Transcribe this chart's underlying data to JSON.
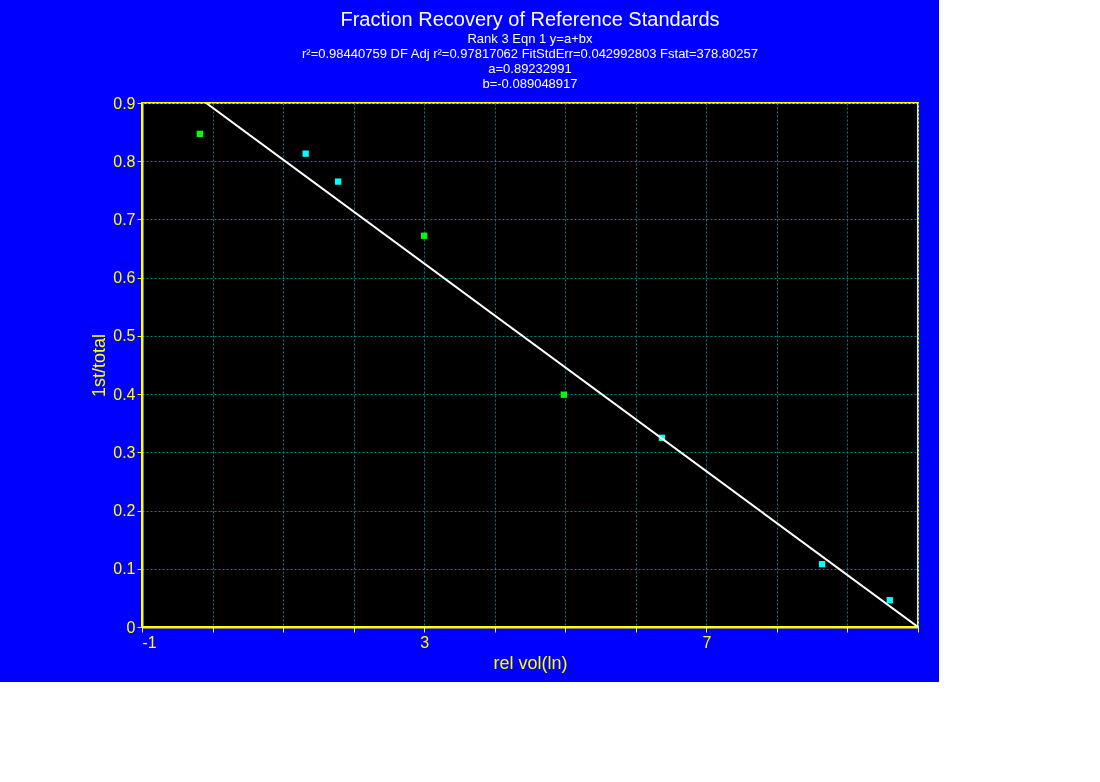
{
  "chart_data": {
    "type": "scatter",
    "title": "Fraction Recovery of Reference Standards",
    "subtitle": [
      "Rank 3  Eqn 1  y=a+bx",
      "r²=0.98440759  DF Adj r²=0.97817062  FitStdErr=0.042992803  Fstat=378.80257",
      "a=0.89232991",
      "b=-0.089048917"
    ],
    "xlabel": "rel vol(ln)",
    "ylabel": "1st/total",
    "xlim": [
      -1,
      10
    ],
    "xticks": [
      -1,
      {
        "value": 0,
        "label": null
      },
      {
        "value": 1,
        "label": null
      },
      {
        "value": 2,
        "label": null
      },
      3,
      {
        "value": 4,
        "label": null
      },
      {
        "value": 5,
        "label": null
      },
      {
        "value": 6,
        "label": null
      },
      7,
      {
        "value": 8,
        "label": null
      },
      {
        "value": 9,
        "label": null
      },
      {
        "value": 10,
        "label": null
      }
    ],
    "ylim": [
      0,
      0.9
    ],
    "yticks": [
      0,
      0.1,
      0.2,
      0.3,
      0.4,
      0.5,
      0.6,
      0.7,
      0.8,
      0.9
    ],
    "grid": true,
    "series": [
      {
        "color": "#00ff00",
        "marker": "square",
        "x": [
          -0.18,
          3.0,
          4.98
        ],
        "values": [
          0.847,
          0.672,
          0.399
        ]
      },
      {
        "color": "#00ffff",
        "marker": "square",
        "x": [
          1.32,
          1.78,
          6.37,
          8.64,
          9.6
        ],
        "values": [
          0.813,
          0.765,
          0.325,
          0.108,
          0.046
        ]
      },
      {
        "type": "line",
        "color": "#ffffff",
        "line_style": "solid",
        "marker": "none",
        "x": [
          -0.09,
          10
        ],
        "values": [
          0.9,
          0.0
        ]
      }
    ]
  }
}
